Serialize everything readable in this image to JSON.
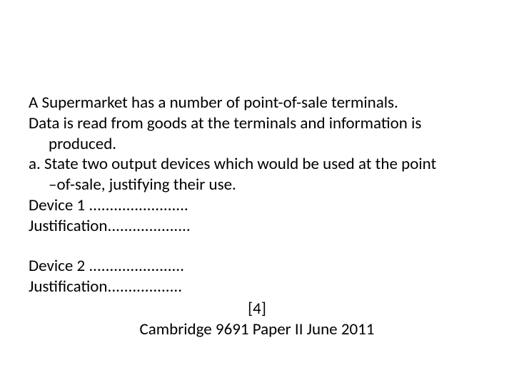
{
  "question": {
    "line1": "A Supermarket has a number of point-of-sale terminals.",
    "line2_a": "Data is read from goods at the terminals and information is",
    "line2_b": "produced.",
    "line3_a": "a. State two output devices which would be used at the point",
    "line3_b": "–of-sale, justifying their use.",
    "device1": "Device 1 ........................",
    "justification1": "Justification....................",
    "device2": "Device 2 .......................",
    "justification2": "Justification..................",
    "marks": "[4]",
    "source": "Cambridge 9691 Paper II June 2011"
  }
}
